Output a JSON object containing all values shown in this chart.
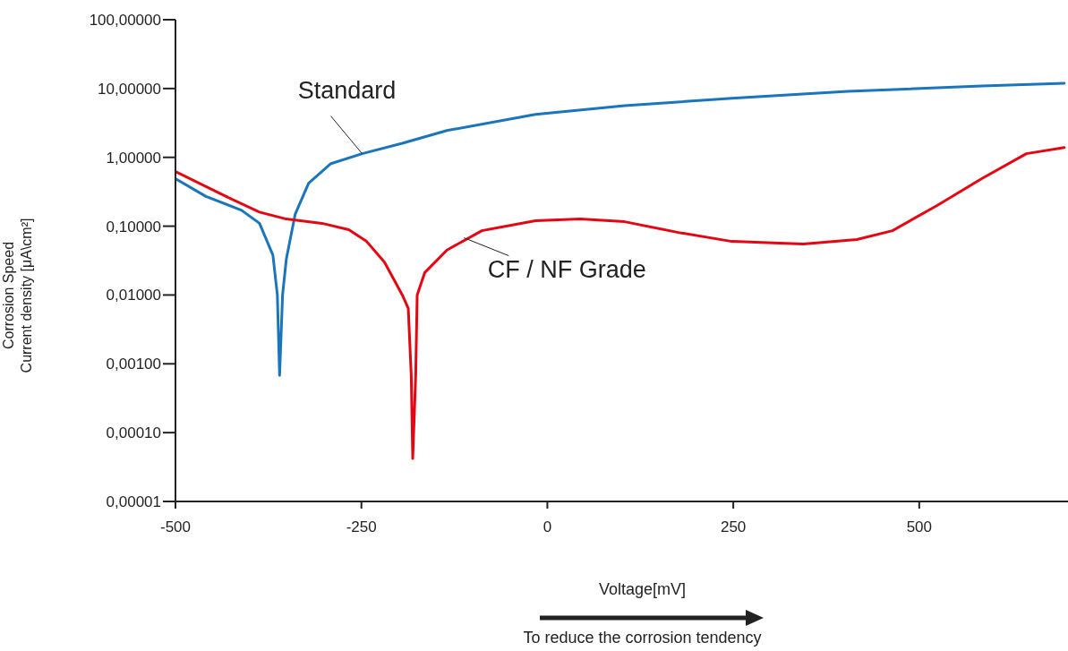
{
  "chart_data": {
    "type": "line",
    "ylabel": "Corrosion Speed\nCurrent density [μA\\cm²]",
    "xlabel": "Voltage[mV]",
    "annotations": [
      "To reduce the corrosion tendency"
    ],
    "log": "y",
    "xlim": [
      -500,
      700
    ],
    "xticks": [
      -500,
      -250,
      0,
      250,
      500
    ],
    "ylim": [
      1e-05,
      100
    ],
    "yticks": [
      {
        "value": 1e-05,
        "label": "0,00001"
      },
      {
        "value": 0.0001,
        "label": "0,00010"
      },
      {
        "value": 0.001,
        "label": "0,00100"
      },
      {
        "value": 0.01,
        "label": "0,01000"
      },
      {
        "value": 0.1,
        "label": "0,10000"
      },
      {
        "value": 1,
        "label": "1,00000"
      },
      {
        "value": 10,
        "label": "10,00000"
      },
      {
        "value": 100,
        "label": "100,00000"
      }
    ],
    "grid": false,
    "legend": false,
    "marker": "none",
    "line_style": "solid",
    "series": [
      {
        "name": "Standard",
        "color": "#1a75bb",
        "x": [
          -500,
          -459,
          -411,
          -387,
          -369,
          -363,
          -360,
          -356,
          -351,
          -339,
          -321,
          -291,
          -249,
          -195,
          -135,
          -16,
          104,
          248,
          404,
          584,
          695
        ],
        "values": [
          0.49,
          0.27,
          0.17,
          0.11,
          0.038,
          0.01,
          0.00068,
          0.01,
          0.033,
          0.15,
          0.42,
          0.81,
          1.13,
          1.6,
          2.45,
          4.2,
          5.65,
          7.2,
          9.1,
          10.9,
          11.9
        ]
      },
      {
        "name": "CF / NF Grade",
        "color": "#e30613",
        "x": [
          -500,
          -435,
          -387,
          -351,
          -303,
          -267,
          -243,
          -219,
          -195,
          -187,
          -183,
          -181,
          -177,
          -175,
          -165,
          -135,
          -88,
          -16,
          44,
          104,
          176,
          248,
          344,
          416,
          464,
          524,
          584,
          644,
          695
        ],
        "values": [
          0.62,
          0.28,
          0.16,
          0.127,
          0.11,
          0.089,
          0.06,
          0.03,
          0.01,
          0.0064,
          0.00068,
          4.2e-05,
          0.00068,
          0.01,
          0.021,
          0.045,
          0.086,
          0.12,
          0.127,
          0.116,
          0.081,
          0.06,
          0.055,
          0.064,
          0.086,
          0.2,
          0.49,
          1.13,
          1.39
        ]
      }
    ]
  }
}
